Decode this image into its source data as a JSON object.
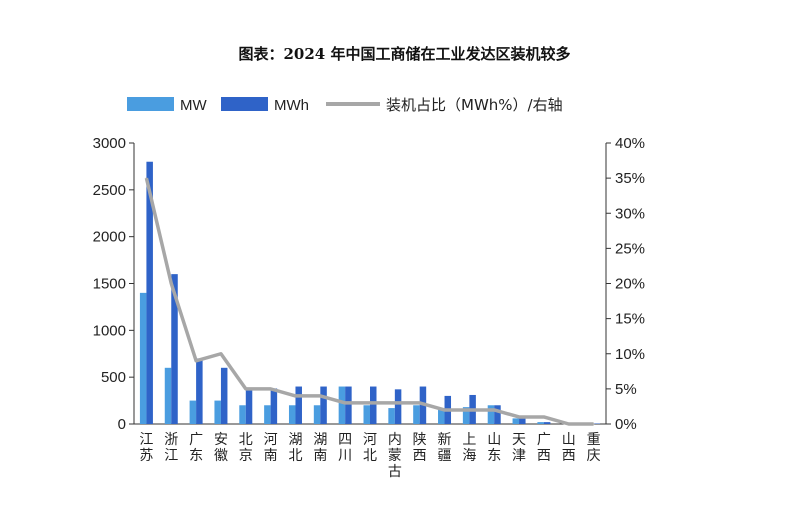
{
  "title": "图表：2024 年中国工商储在工业发达区装机较多",
  "colors": {
    "mw": "#4a9de0",
    "mwh": "#2f63c8",
    "ratio": "#a7a7a7",
    "axis": "#333333"
  },
  "chart_data": {
    "type": "bar",
    "title": "图表：2024 年中国工商储在工业发达区装机较多",
    "categories": [
      "江苏",
      "浙江",
      "广东",
      "安徽",
      "北京",
      "河南",
      "湖北",
      "湖南",
      "四川",
      "河北",
      "内蒙古",
      "陕西",
      "新疆",
      "上海",
      "山东",
      "天津",
      "广西",
      "山西",
      "重庆"
    ],
    "series": [
      {
        "name": "MW",
        "axis": "left",
        "kind": "bar",
        "values": [
          1400,
          600,
          250,
          250,
          200,
          200,
          200,
          200,
          400,
          200,
          170,
          200,
          170,
          180,
          200,
          60,
          20,
          5,
          5
        ]
      },
      {
        "name": "MWh",
        "axis": "left",
        "kind": "bar",
        "values": [
          2800,
          1600,
          700,
          600,
          370,
          380,
          400,
          400,
          400,
          400,
          370,
          400,
          300,
          310,
          200,
          70,
          20,
          10,
          5
        ]
      },
      {
        "name": "装机占比（MWh%）/右轴",
        "axis": "right",
        "kind": "line",
        "values": [
          35,
          20,
          9,
          10,
          5,
          5,
          4,
          4,
          3,
          3,
          3,
          3,
          2,
          2,
          2,
          1,
          1,
          0,
          0
        ]
      }
    ],
    "left_axis": {
      "ylim": [
        0,
        3000
      ],
      "ticks": [
        "0",
        "500",
        "1000",
        "1500",
        "2000",
        "2500",
        "3000"
      ]
    },
    "right_axis": {
      "ylim": [
        0,
        40
      ],
      "ticks": [
        "0%",
        "5%",
        "10%",
        "15%",
        "20%",
        "25%",
        "30%",
        "35%",
        "40%"
      ]
    },
    "legend": {
      "position": "top",
      "labels": [
        "MW",
        "MWh",
        "装机占比（MWh%）/右轴"
      ]
    }
  }
}
